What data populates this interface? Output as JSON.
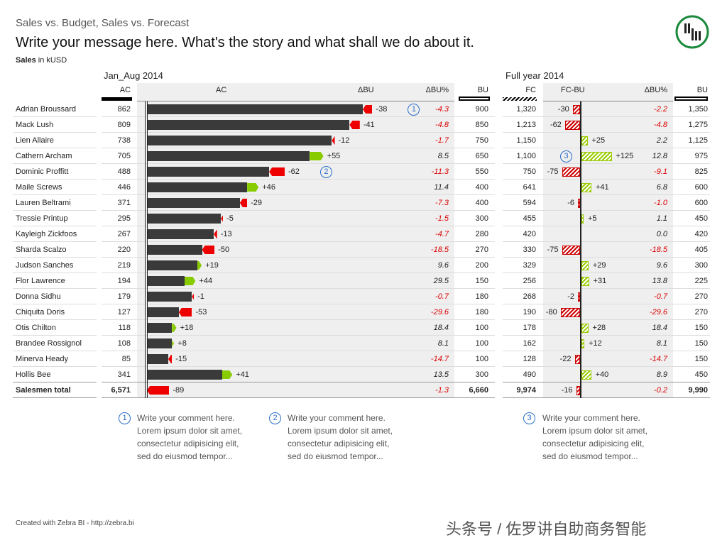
{
  "header": {
    "supertitle": "Sales vs. Budget, Sales vs. Forecast",
    "message": "Write your message here. What's the story and what shall we do about it.",
    "unit_bold": "Sales",
    "unit_rest": " in kUSD"
  },
  "logo": {
    "icon": "zebra-bi-logo",
    "color": "#1a8a3c"
  },
  "chart_data": {
    "type": "table",
    "left_section": "Jan_Aug 2014",
    "right_section": "Full year 2014",
    "columns": {
      "ac": "AC",
      "ac_chart": "AC",
      "dbu": "ΔBU",
      "dbu_pct": "ΔBU%",
      "bu": "BU",
      "fc": "FC",
      "fc_bu": "FC-BU",
      "fy_dbu_pct": "ΔBU%",
      "fy_bu": "BU"
    },
    "colors": {
      "bar": "#3a3a3a",
      "negative": "#e00000",
      "positive": "#88cc00"
    },
    "rows": [
      {
        "name": "Adrian Broussard",
        "ac": "862",
        "dbu": "-38",
        "dbu_pct": "-4.3",
        "bu": "900",
        "fc": "1,320",
        "fc_bu": "-30",
        "fy_pct": "-2.2",
        "fy_bu": "1,350"
      },
      {
        "name": "Mack Lush",
        "ac": "809",
        "dbu": "-41",
        "dbu_pct": "-4.8",
        "bu": "850",
        "fc": "1,213",
        "fc_bu": "-62",
        "fy_pct": "-4.8",
        "fy_bu": "1,275"
      },
      {
        "name": "Lien Allaire",
        "ac": "738",
        "dbu": "-12",
        "dbu_pct": "-1.7",
        "bu": "750",
        "fc": "1,150",
        "fc_bu": "+25",
        "fy_pct": "2.2",
        "fy_bu": "1,125"
      },
      {
        "name": "Cathern Archam",
        "ac": "705",
        "dbu": "+55",
        "dbu_pct": "8.5",
        "bu": "650",
        "fc": "1,100",
        "fc_bu": "+125",
        "fy_pct": "12.8",
        "fy_bu": "975"
      },
      {
        "name": "Dominic Proffitt",
        "ac": "488",
        "dbu": "-62",
        "dbu_pct": "-11.3",
        "bu": "550",
        "fc": "750",
        "fc_bu": "-75",
        "fy_pct": "-9.1",
        "fy_bu": "825"
      },
      {
        "name": "Maile Screws",
        "ac": "446",
        "dbu": "+46",
        "dbu_pct": "11.4",
        "bu": "400",
        "fc": "641",
        "fc_bu": "+41",
        "fy_pct": "6.8",
        "fy_bu": "600"
      },
      {
        "name": "Lauren Beltrami",
        "ac": "371",
        "dbu": "-29",
        "dbu_pct": "-7.3",
        "bu": "400",
        "fc": "594",
        "fc_bu": "-6",
        "fy_pct": "-1.0",
        "fy_bu": "600"
      },
      {
        "name": "Tressie Printup",
        "ac": "295",
        "dbu": "-5",
        "dbu_pct": "-1.5",
        "bu": "300",
        "fc": "455",
        "fc_bu": "+5",
        "fy_pct": "1.1",
        "fy_bu": "450"
      },
      {
        "name": "Kayleigh Zickfoos",
        "ac": "267",
        "dbu": "-13",
        "dbu_pct": "-4.7",
        "bu": "280",
        "fc": "420",
        "fc_bu": "",
        "fy_pct": "0.0",
        "fy_bu": "420"
      },
      {
        "name": "Sharda Scalzo",
        "ac": "220",
        "dbu": "-50",
        "dbu_pct": "-18.5",
        "bu": "270",
        "fc": "330",
        "fc_bu": "-75",
        "fy_pct": "-18.5",
        "fy_bu": "405"
      },
      {
        "name": "Judson Sanches",
        "ac": "219",
        "dbu": "+19",
        "dbu_pct": "9.6",
        "bu": "200",
        "fc": "329",
        "fc_bu": "+29",
        "fy_pct": "9.6",
        "fy_bu": "300"
      },
      {
        "name": "Flor Lawrence",
        "ac": "194",
        "dbu": "+44",
        "dbu_pct": "29.5",
        "bu": "150",
        "fc": "256",
        "fc_bu": "+31",
        "fy_pct": "13.8",
        "fy_bu": "225"
      },
      {
        "name": "Donna Sidhu",
        "ac": "179",
        "dbu": "-1",
        "dbu_pct": "-0.7",
        "bu": "180",
        "fc": "268",
        "fc_bu": "-2",
        "fy_pct": "-0.7",
        "fy_bu": "270"
      },
      {
        "name": "Chiquita Doris",
        "ac": "127",
        "dbu": "-53",
        "dbu_pct": "-29.6",
        "bu": "180",
        "fc": "190",
        "fc_bu": "-80",
        "fy_pct": "-29.6",
        "fy_bu": "270"
      },
      {
        "name": "Otis Chilton",
        "ac": "118",
        "dbu": "+18",
        "dbu_pct": "18.4",
        "bu": "100",
        "fc": "178",
        "fc_bu": "+28",
        "fy_pct": "18.4",
        "fy_bu": "150"
      },
      {
        "name": "Brandee Rossignol",
        "ac": "108",
        "dbu": "+8",
        "dbu_pct": "8.1",
        "bu": "100",
        "fc": "162",
        "fc_bu": "+12",
        "fy_pct": "8.1",
        "fy_bu": "150"
      },
      {
        "name": "Minerva Heady",
        "ac": "85",
        "dbu": "-15",
        "dbu_pct": "-14.7",
        "bu": "100",
        "fc": "128",
        "fc_bu": "-22",
        "fy_pct": "-14.7",
        "fy_bu": "150"
      },
      {
        "name": "Hollis Bee",
        "ac": "341",
        "dbu": "+41",
        "dbu_pct": "13.5",
        "bu": "300",
        "fc": "490",
        "fc_bu": "+40",
        "fy_pct": "8.9",
        "fy_bu": "450"
      }
    ],
    "total": {
      "name": "Salesmen total",
      "ac": "6,571",
      "dbu": "-89",
      "dbu_pct": "-1.3",
      "bu": "6,660",
      "fc": "9,974",
      "fc_bu": "-16",
      "fy_pct": "-0.2",
      "fy_bu": "9,990"
    },
    "annotations": [
      {
        "label": "1",
        "row": 0,
        "panel": "left"
      },
      {
        "label": "2",
        "row": 4,
        "panel": "left"
      },
      {
        "label": "3",
        "row": 3,
        "panel": "right"
      }
    ]
  },
  "comments": [
    {
      "num": "1",
      "lines": [
        "Write your comment here.",
        "Lorem ipsum dolor sit amet,",
        "consectetur adipisicing elit,",
        "sed do eiusmod tempor..."
      ]
    },
    {
      "num": "2",
      "lines": [
        "Write your comment here.",
        "Lorem ipsum dolor sit amet,",
        "consectetur adipisicing elit,",
        "sed do eiusmod tempor..."
      ]
    },
    {
      "num": "3",
      "lines": [
        "Write your comment here.",
        "Lorem ipsum dolor sit amet,",
        "consectetur adipisicing elit,",
        "sed do eiusmod tempor..."
      ]
    }
  ],
  "footer": {
    "credit": "Created with Zebra BI - http://zebra.bi",
    "watermark": "头条号 / 佐罗讲自助商务智能"
  }
}
